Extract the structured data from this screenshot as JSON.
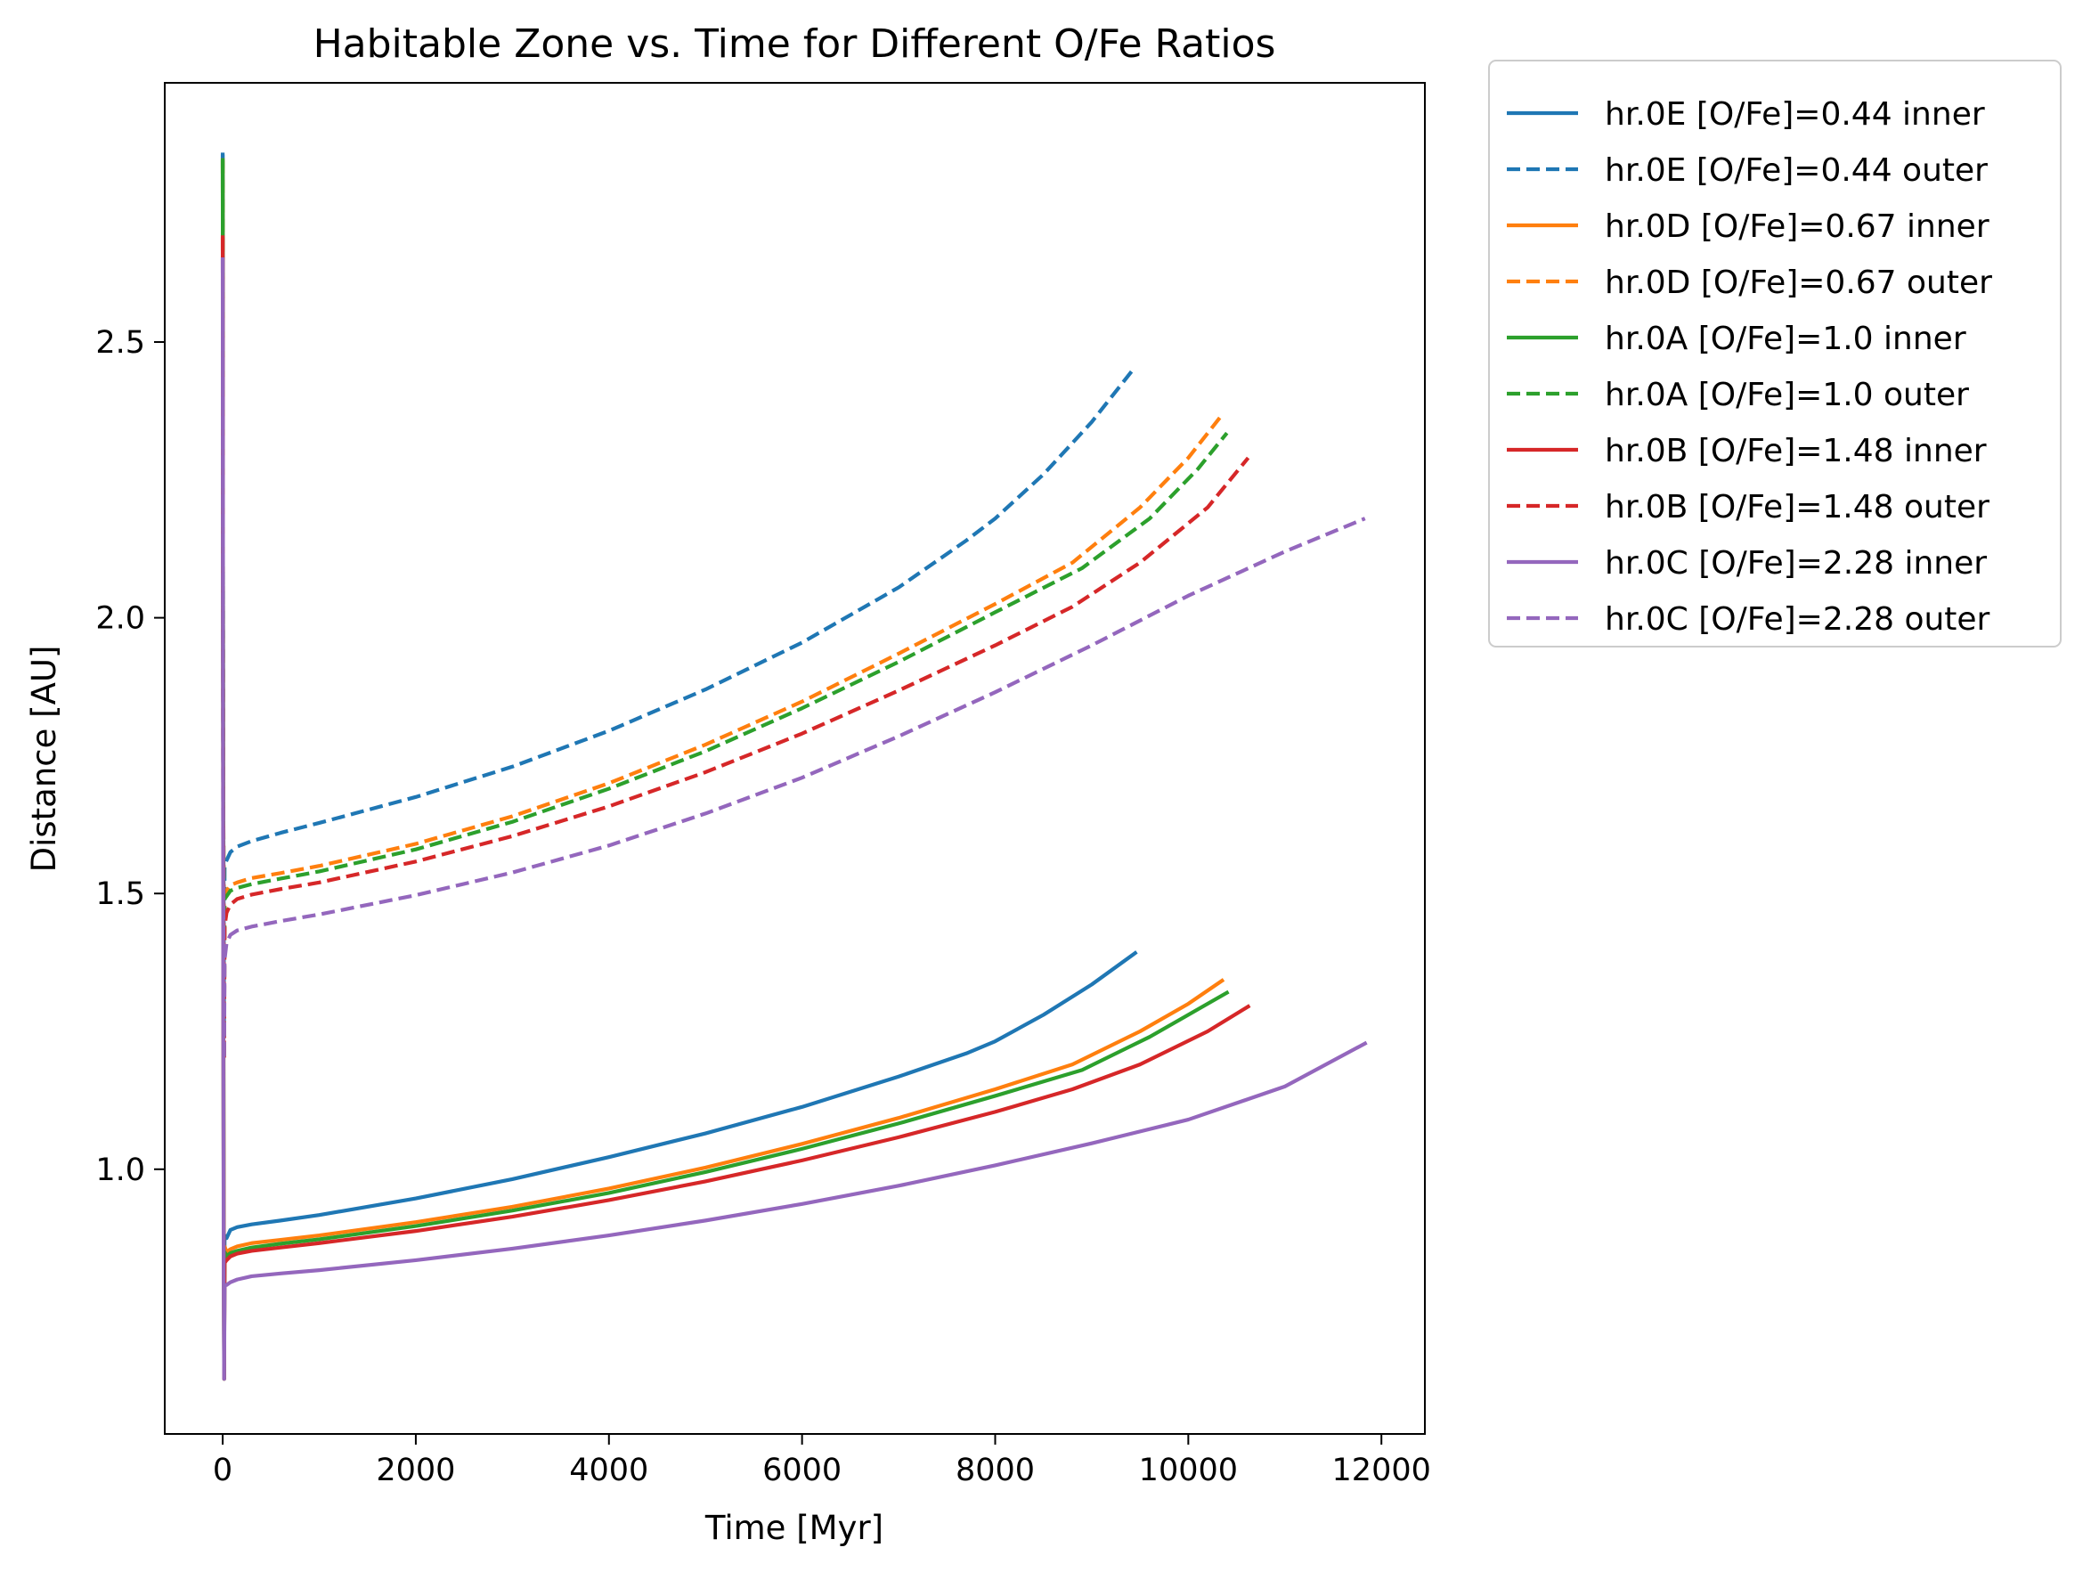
{
  "chart_data": {
    "type": "line",
    "title": "Habitable Zone vs. Time for Different O/Fe Ratios",
    "xlabel": "Time [Myr]",
    "ylabel": "Distance [AU]",
    "xlim": [
      -600,
      12450
    ],
    "ylim": [
      0.52,
      2.97
    ],
    "xticks": [
      0,
      2000,
      4000,
      6000,
      8000,
      10000,
      12000
    ],
    "yticks": [
      1.0,
      1.5,
      2.0,
      2.5
    ],
    "ytick_labels": [
      "1.0",
      "1.5",
      "2.0",
      "2.5"
    ],
    "grid": false,
    "legend_position": "outside-upper-right",
    "series": [
      {
        "name": "hr.0E [O/Fe]=0.44 inner",
        "color": "#1f77b4",
        "dash": "solid",
        "x": [
          0,
          5,
          10,
          15,
          20,
          40,
          80,
          150,
          300,
          600,
          1000,
          2000,
          3000,
          4000,
          5000,
          6000,
          7000,
          7700,
          8000,
          8500,
          9000,
          9450
        ],
        "y": [
          2.84,
          1.72,
          0.98,
          0.62,
          0.88,
          0.875,
          0.89,
          0.895,
          0.9,
          0.907,
          0.917,
          0.947,
          0.982,
          1.022,
          1.065,
          1.113,
          1.168,
          1.21,
          1.232,
          1.28,
          1.335,
          1.392
        ]
      },
      {
        "name": "hr.0E [O/Fe]=0.44 outer",
        "color": "#1f77b4",
        "dash": "dashed",
        "x": [
          0,
          5,
          10,
          15,
          20,
          40,
          80,
          150,
          300,
          600,
          1000,
          2000,
          3000,
          4000,
          5000,
          6000,
          7000,
          7700,
          8000,
          8500,
          9000,
          9450
        ],
        "y": [
          2.84,
          1.73,
          1.52,
          1.24,
          1.55,
          1.56,
          1.575,
          1.585,
          1.595,
          1.61,
          1.628,
          1.675,
          1.73,
          1.795,
          1.87,
          1.955,
          2.055,
          2.14,
          2.18,
          2.26,
          2.355,
          2.455
        ]
      },
      {
        "name": "hr.0D [O/Fe]=0.67 inner",
        "color": "#ff7f0e",
        "dash": "solid",
        "x": [
          0,
          5,
          10,
          15,
          20,
          40,
          80,
          150,
          300,
          600,
          1000,
          2000,
          3000,
          4000,
          5000,
          6000,
          7000,
          8000,
          8800,
          9500,
          10000,
          10350
        ],
        "y": [
          2.83,
          1.7,
          0.96,
          0.62,
          0.86,
          0.85,
          0.855,
          0.86,
          0.866,
          0.872,
          0.88,
          0.904,
          0.932,
          0.965,
          1.003,
          1.046,
          1.093,
          1.145,
          1.19,
          1.25,
          1.3,
          1.342
        ]
      },
      {
        "name": "hr.0D [O/Fe]=0.67 outer",
        "color": "#ff7f0e",
        "dash": "dashed",
        "x": [
          0,
          5,
          10,
          15,
          20,
          40,
          80,
          150,
          300,
          600,
          1000,
          2000,
          3000,
          4000,
          5000,
          6000,
          7000,
          8000,
          8800,
          9500,
          10000,
          10350
        ],
        "y": [
          2.83,
          1.72,
          1.55,
          1.2,
          1.5,
          1.505,
          1.515,
          1.52,
          1.528,
          1.537,
          1.55,
          1.59,
          1.64,
          1.7,
          1.77,
          1.848,
          1.935,
          2.025,
          2.1,
          2.2,
          2.29,
          2.368
        ]
      },
      {
        "name": "hr.0A [O/Fe]=1.0 inner",
        "color": "#2ca02c",
        "dash": "solid",
        "x": [
          0,
          5,
          10,
          15,
          20,
          40,
          80,
          150,
          300,
          600,
          1000,
          2000,
          3000,
          4000,
          5000,
          6000,
          7000,
          8000,
          8900,
          9600,
          10100,
          10400
        ],
        "y": [
          2.83,
          1.69,
          0.95,
          0.62,
          0.85,
          0.843,
          0.848,
          0.852,
          0.858,
          0.865,
          0.873,
          0.897,
          0.925,
          0.957,
          0.995,
          1.037,
          1.083,
          1.133,
          1.18,
          1.24,
          1.29,
          1.32
        ]
      },
      {
        "name": "hr.0A [O/Fe]=1.0 outer",
        "color": "#2ca02c",
        "dash": "dashed",
        "x": [
          0,
          5,
          10,
          15,
          20,
          40,
          80,
          150,
          300,
          600,
          1000,
          2000,
          3000,
          4000,
          5000,
          6000,
          7000,
          8000,
          8900,
          9600,
          10100,
          10400
        ],
        "y": [
          2.83,
          1.71,
          1.55,
          1.2,
          1.49,
          1.495,
          1.505,
          1.51,
          1.517,
          1.527,
          1.54,
          1.58,
          1.63,
          1.69,
          1.758,
          1.836,
          1.92,
          2.01,
          2.09,
          2.18,
          2.27,
          2.335
        ]
      },
      {
        "name": "hr.0B [O/Fe]=1.48 inner",
        "color": "#d62728",
        "dash": "solid",
        "x": [
          0,
          5,
          10,
          15,
          20,
          40,
          80,
          150,
          300,
          600,
          1000,
          2000,
          3000,
          4000,
          5000,
          6000,
          7000,
          8000,
          8800,
          9500,
          10200,
          10620
        ],
        "y": [
          2.69,
          1.6,
          0.92,
          0.62,
          0.83,
          0.835,
          0.842,
          0.847,
          0.852,
          0.858,
          0.866,
          0.888,
          0.914,
          0.944,
          0.978,
          1.016,
          1.058,
          1.104,
          1.145,
          1.19,
          1.25,
          1.295
        ]
      },
      {
        "name": "hr.0B [O/Fe]=1.48 outer",
        "color": "#d62728",
        "dash": "dashed",
        "x": [
          0,
          5,
          10,
          15,
          20,
          40,
          80,
          150,
          300,
          600,
          1000,
          2000,
          3000,
          4000,
          5000,
          6000,
          7000,
          8000,
          8800,
          9500,
          10200,
          10620
        ],
        "y": [
          2.69,
          1.65,
          1.5,
          1.2,
          1.44,
          1.465,
          1.48,
          1.49,
          1.498,
          1.508,
          1.52,
          1.558,
          1.604,
          1.658,
          1.72,
          1.79,
          1.868,
          1.95,
          2.02,
          2.1,
          2.2,
          2.29
        ]
      },
      {
        "name": "hr.0C [O/Fe]=2.28 inner",
        "color": "#9467bd",
        "dash": "solid",
        "x": [
          0,
          5,
          10,
          15,
          20,
          40,
          80,
          150,
          300,
          600,
          1000,
          2000,
          3000,
          4000,
          5000,
          6000,
          7000,
          8000,
          9000,
          10000,
          11000,
          11830
        ],
        "y": [
          2.65,
          1.45,
          0.82,
          0.62,
          0.79,
          0.79,
          0.795,
          0.8,
          0.806,
          0.811,
          0.817,
          0.835,
          0.856,
          0.88,
          0.907,
          0.937,
          0.97,
          1.007,
          1.047,
          1.09,
          1.15,
          1.228
        ]
      },
      {
        "name": "hr.0C [O/Fe]=2.28 outer",
        "color": "#9467bd",
        "dash": "dashed",
        "x": [
          0,
          5,
          10,
          15,
          20,
          40,
          80,
          150,
          300,
          600,
          1000,
          2000,
          3000,
          4000,
          5000,
          6000,
          7000,
          8000,
          9000,
          10000,
          11000,
          11830
        ],
        "y": [
          2.65,
          1.55,
          1.4,
          1.2,
          1.38,
          1.41,
          1.425,
          1.433,
          1.44,
          1.45,
          1.462,
          1.497,
          1.538,
          1.587,
          1.645,
          1.71,
          1.785,
          1.865,
          1.95,
          2.04,
          2.12,
          2.18
        ]
      }
    ]
  }
}
